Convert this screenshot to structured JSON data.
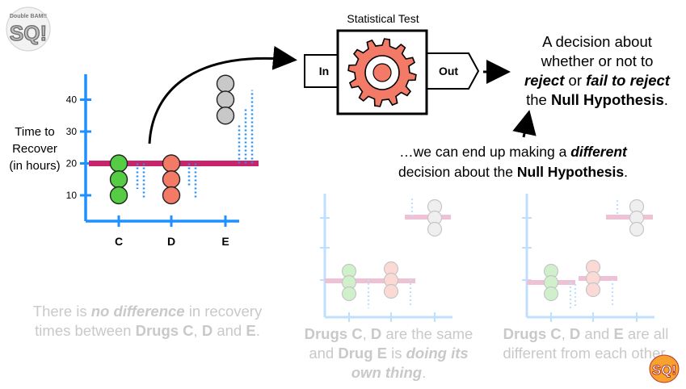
{
  "logo": {
    "text": "StatQuest",
    "subtitle": "Double BAM!!"
  },
  "test_box": {
    "title": "Statistical Test",
    "in_label": "In",
    "out_label": "Out"
  },
  "decision": {
    "line1": "A decision about",
    "line2": "whether or not to",
    "reject": "reject",
    "or": " or ",
    "fail_to_reject": "fail to reject",
    "the": "the ",
    "null_hypothesis": "Null Hypothesis",
    "period": "."
  },
  "different": {
    "prefix": "…we can end up making a ",
    "different": "different",
    "line2_prefix": "decision about the ",
    "null_hypothesis": "Null Hypothesis",
    "period": "."
  },
  "main_chart": {
    "y_title_line1": "Time to",
    "y_title_line2": "Recover",
    "y_title_line3": "(in hours)",
    "y_ticks": [
      "10",
      "20",
      "30",
      "40"
    ],
    "x_ticks": [
      "C",
      "D",
      "E"
    ]
  },
  "chart_data": {
    "type": "scatter",
    "ylabel": "Time to Recover (in hours)",
    "categories": [
      "C",
      "D",
      "E"
    ],
    "yticks": [
      10,
      20,
      30,
      40
    ],
    "ylim": [
      0,
      48
    ],
    "series": [
      {
        "name": "C",
        "values": [
          20,
          15,
          10
        ],
        "color": "#55cc44"
      },
      {
        "name": "D",
        "values": [
          20,
          15,
          10
        ],
        "color": "#f47a68"
      },
      {
        "name": "E",
        "values": [
          45,
          40,
          35
        ],
        "color": "#c8c8c8"
      }
    ],
    "mean_line": 20,
    "mean_color": "#c8246c"
  },
  "captions": {
    "left": {
      "a": "There is ",
      "b": "no difference",
      "c": " in recovery times between ",
      "d": "Drugs C",
      "e": ", ",
      "f": "D",
      "g": " and ",
      "h": "E",
      "i": "."
    },
    "middle": {
      "a": "Drugs C",
      "b": ", ",
      "c": "D",
      "d": " are the same and ",
      "e": "Drug E",
      "f": " is ",
      "g": "doing its own thing",
      "h": "."
    },
    "right": {
      "a": "Drugs C",
      "b": ", ",
      "c": "D",
      "d": " and ",
      "e": "E",
      "f": " are all different from each other."
    }
  },
  "colors": {
    "axis_blue": "#1e90ff",
    "mean_magenta": "#c8246c",
    "gear": "#f47a68",
    "green": "#55cc44",
    "gray": "#c8c8c8",
    "faded_caption": "#c9c9c9"
  }
}
